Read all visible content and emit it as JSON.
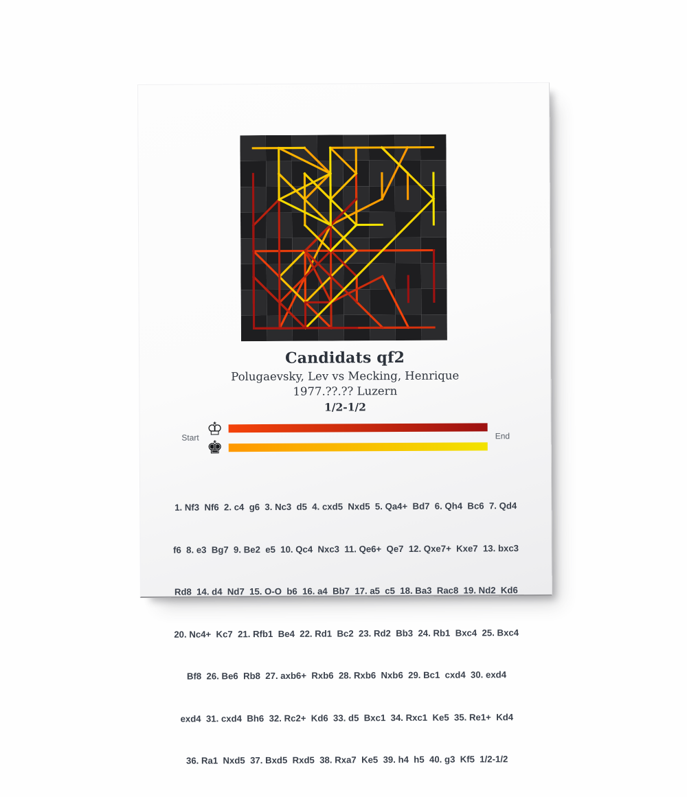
{
  "poster": {
    "title": "Candidats qf2",
    "players": "Polugaevsky, Lev vs Mecking, Henrique",
    "event": "1977.??.?? Luzern",
    "result": "1/2-1/2"
  },
  "legend": {
    "start_label": "Start",
    "end_label": "End",
    "white_king_icon": "♔",
    "black_king_icon": "♚",
    "white_gradient": [
      "#f4430a",
      "#9d1111"
    ],
    "black_gradient": [
      "#ff9800",
      "#f2e300"
    ]
  },
  "board": {
    "size": 8,
    "light_square": "#2b2b2d",
    "dark_square": "#1e1e20",
    "line_width": 0.082
  },
  "trajectories": {
    "white": [
      [
        "g1f3"
      ],
      [
        "c2c4"
      ],
      [
        "b1c3"
      ],
      [
        "c4d5"
      ],
      [
        "d1a4"
      ],
      [
        "a4h4"
      ],
      [
        "h4d4"
      ],
      [
        "e2e3"
      ],
      [
        "f1e2"
      ],
      [
        "d4c4"
      ],
      [
        "c4e6"
      ],
      [
        "e6e7"
      ],
      [
        "b2c3"
      ],
      [
        "d2d4"
      ],
      [
        "e1g1",
        "h1f1"
      ],
      [
        "a2a4"
      ],
      [
        "a4a5"
      ],
      [
        "c1a3"
      ],
      [
        "f3d2"
      ],
      [
        "d2c4"
      ],
      [
        "f1b1"
      ],
      [
        "b1d1"
      ],
      [
        "d1d2"
      ],
      [
        "a1b1"
      ],
      [
        "e2c4"
      ],
      [
        "c4e6"
      ],
      [
        "a5b6"
      ],
      [
        "b1b6"
      ],
      [
        "a3c1"
      ],
      [
        "e3d4"
      ],
      [
        "c3d4"
      ],
      [
        "d2c2"
      ],
      [
        "d4d5"
      ],
      [
        "c2c1"
      ],
      [
        "c1e1"
      ],
      [
        "e1a1"
      ],
      [
        "e6d5"
      ],
      [
        "a1a7"
      ],
      [
        "h2h4"
      ],
      [
        "g2g3"
      ]
    ],
    "black": [
      [
        "g8f6"
      ],
      [
        "g7g6"
      ],
      [
        "d7d5"
      ],
      [
        "f6d5"
      ],
      [
        "c8d7"
      ],
      [
        "d7c6"
      ],
      [
        "f7f6"
      ],
      [
        "f8g7"
      ],
      [
        "e7e5"
      ],
      [
        "d5c3"
      ],
      [
        "d8e7"
      ],
      [
        "e8e7"
      ],
      [
        "h8d8"
      ],
      [
        "b8d7"
      ],
      [
        "b7b6"
      ],
      [
        "c6b7"
      ],
      [
        "c7c5"
      ],
      [
        "a8c8"
      ],
      [
        "e7d6"
      ],
      [
        "d6c7"
      ],
      [
        "b7e4"
      ],
      [
        "e4c2"
      ],
      [
        "c2b3"
      ],
      [
        "b3c4"
      ],
      [
        "g7f8"
      ],
      [
        "c8b8"
      ],
      [
        "b8b6"
      ],
      [
        "d7b6"
      ],
      [
        "c5d4"
      ],
      [
        "e5d4"
      ],
      [
        "f8h6"
      ],
      [
        "c7d6"
      ],
      [
        "h6c1"
      ],
      [
        "d6e5"
      ],
      [
        "e5d4"
      ],
      [
        "b6d5"
      ],
      [
        "d8d5"
      ],
      [
        "d4e5"
      ],
      [
        "h7h5"
      ],
      [
        "e5f5"
      ]
    ]
  },
  "moves_lines": [
    "1. Nf3  Nf6  2. c4  g6  3. Nc3  d5  4. cxd5  Nxd5  5. Qa4+  Bd7  6. Qh4  Bc6  7. Qd4",
    "f6  8. e3  Bg7  9. Be2  e5  10. Qc4  Nxc3  11. Qe6+  Qe7  12. Qxe7+  Kxe7  13. bxc3",
    "Rd8  14. d4  Nd7  15. O-O  b6  16. a4  Bb7  17. a5  c5  18. Ba3  Rac8  19. Nd2  Kd6",
    "20. Nc4+  Kc7  21. Rfb1  Be4  22. Rd1  Bc2  23. Rd2  Bb3  24. Rb1  Bxc4  25. Bxc4",
    "Bf8  26. Be6  Rb8  27. axb6+  Rxb6  28. Rxb6  Nxb6  29. Bc1  cxd4  30. exd4",
    "exd4  31. cxd4  Bh6  32. Rc2+  Kd6  33. d5  Bxc1  34. Rxc1  Ke5  35. Re1+  Kd4",
    "36. Ra1  Nxd5  37. Bxd5  Rxd5  38. Rxa7  Ke5  39. h4  h5  40. g3  Kf5  1/2-1/2"
  ]
}
